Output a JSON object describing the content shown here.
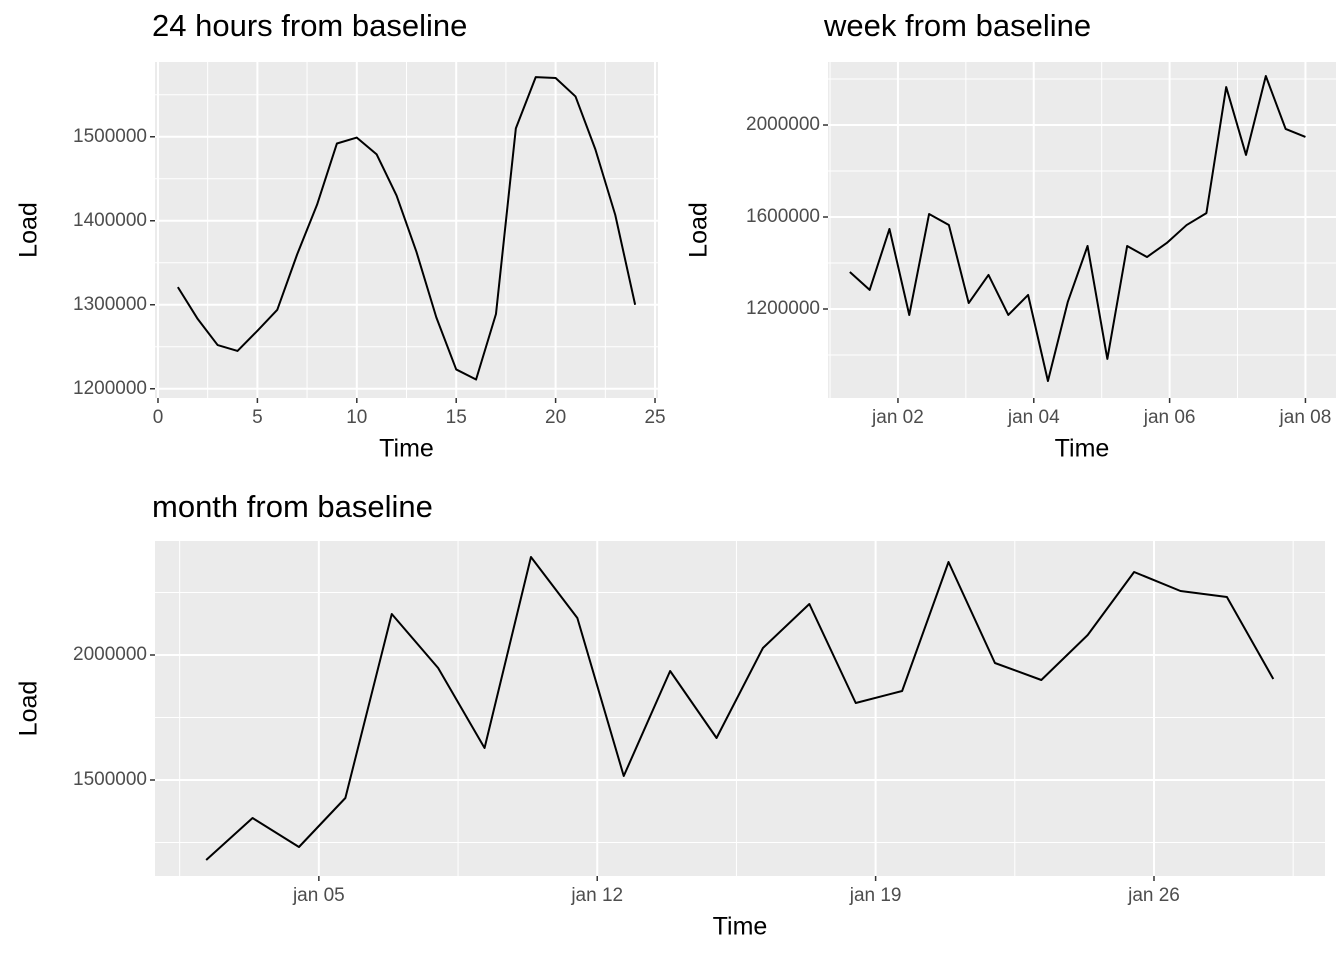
{
  "chart_data": [
    {
      "type": "line",
      "title": "24 hours from baseline",
      "x_label": "Time",
      "y_label": "Load",
      "x": [
        1,
        2,
        3,
        4,
        5,
        6,
        7,
        8,
        9,
        10,
        11,
        12,
        13,
        14,
        15,
        16,
        17,
        18,
        19,
        20,
        21,
        22,
        23,
        24
      ],
      "values": [
        1321000,
        1283000,
        1252000,
        1245000,
        1269000,
        1294000,
        1360000,
        1419000,
        1492000,
        1499000,
        1479000,
        1430000,
        1363000,
        1285000,
        1223000,
        1211000,
        1289000,
        1510000,
        1571000,
        1570000,
        1548000,
        1485000,
        1407000,
        1300000
      ],
      "color": "#000000",
      "grid": true,
      "xlim": [
        -0.15,
        25.15
      ],
      "xticks": [
        0,
        5,
        10,
        15,
        20,
        25
      ],
      "ylim": [
        1189000,
        1589000
      ],
      "yticks": [
        1200000,
        1300000,
        1400000,
        1500000
      ]
    },
    {
      "type": "line",
      "title": "week from baseline",
      "x_label": "Time",
      "y_label": "Load",
      "x": [
        1.2917,
        1.5833,
        1.875,
        2.1667,
        2.4583,
        2.75,
        3.0417,
        3.3333,
        3.625,
        3.9167,
        4.2083,
        4.5,
        4.7917,
        5.0833,
        5.375,
        5.6667,
        5.9583,
        6.25,
        6.5417,
        6.8333,
        7.125,
        7.4167,
        7.7083,
        8
      ],
      "values": [
        1361000,
        1283000,
        1548000,
        1174000,
        1613000,
        1565000,
        1226000,
        1348000,
        1174000,
        1261000,
        887000,
        1230000,
        1474000,
        983000,
        1474000,
        1426000,
        1487000,
        1565000,
        1617000,
        2165000,
        1870000,
        2213000,
        1983000,
        1948000
      ],
      "color": "#000000",
      "grid": true,
      "xlim": [
        0.97,
        8.45
      ],
      "xticks": [
        {
          "value": 2,
          "label": "jan 02"
        },
        {
          "value": 4,
          "label": "jan 04"
        },
        {
          "value": 6,
          "label": "jan 06"
        },
        {
          "value": 8,
          "label": "jan 08"
        }
      ],
      "ylim": [
        813000,
        2274000
      ],
      "yticks": [
        1200000,
        1600000,
        2000000
      ]
    },
    {
      "type": "line",
      "title": "month from baseline",
      "x_label": "Time",
      "y_label": "Load",
      "x": [
        2.1667,
        3.3333,
        4.5,
        5.6667,
        6.8333,
        8,
        9.1667,
        10.3333,
        11.5,
        12.6667,
        13.8333,
        15,
        16.1667,
        17.3333,
        18.5,
        19.6667,
        20.8333,
        22,
        23.1667,
        24.3333,
        25.5,
        26.6667,
        27.8333,
        29
      ],
      "values": [
        1180000,
        1348000,
        1232000,
        1428000,
        2164000,
        1948000,
        1628000,
        2392000,
        2148000,
        1516000,
        1936000,
        1668000,
        2028000,
        2204000,
        1808000,
        1856000,
        2372000,
        1968000,
        1900000,
        2080000,
        2332000,
        2256000,
        2232000,
        1904000
      ],
      "color": "#000000",
      "grid": true,
      "xlim": [
        0.88,
        30.3
      ],
      "xticks": [
        {
          "value": 5,
          "label": "jan 05"
        },
        {
          "value": 12,
          "label": "jan 12"
        },
        {
          "value": 19,
          "label": "jan 19"
        },
        {
          "value": 26,
          "label": "jan 26"
        }
      ],
      "ylim": [
        1116000,
        2456000
      ],
      "yticks": [
        1500000,
        2000000
      ]
    }
  ]
}
